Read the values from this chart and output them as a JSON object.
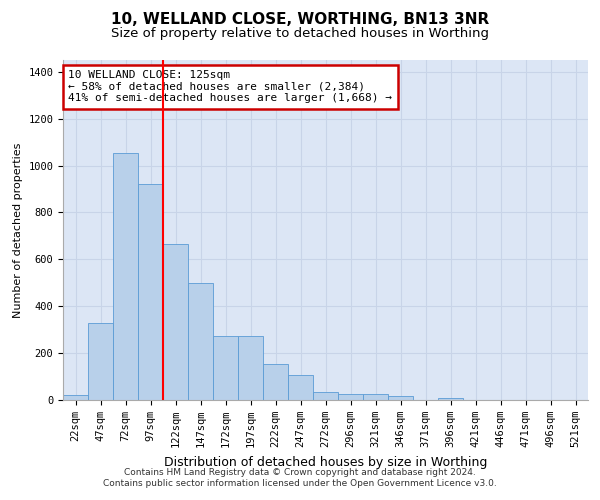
{
  "title": "10, WELLAND CLOSE, WORTHING, BN13 3NR",
  "subtitle": "Size of property relative to detached houses in Worthing",
  "xlabel": "Distribution of detached houses by size in Worthing",
  "ylabel": "Number of detached properties",
  "bin_labels": [
    "22sqm",
    "47sqm",
    "72sqm",
    "97sqm",
    "122sqm",
    "147sqm",
    "172sqm",
    "197sqm",
    "222sqm",
    "247sqm",
    "272sqm",
    "296sqm",
    "321sqm",
    "346sqm",
    "371sqm",
    "396sqm",
    "421sqm",
    "446sqm",
    "471sqm",
    "496sqm",
    "521sqm"
  ],
  "bar_values": [
    20,
    330,
    1055,
    920,
    665,
    500,
    275,
    275,
    155,
    105,
    35,
    25,
    25,
    15,
    0,
    10,
    0,
    0,
    0,
    0,
    0
  ],
  "bar_color": "#b8d0ea",
  "bar_edge_color": "#5b9bd5",
  "grid_color": "#c8d4e8",
  "background_color": "#dce6f5",
  "red_line_bin_index": 4,
  "annotation_text": "10 WELLAND CLOSE: 125sqm\n← 58% of detached houses are smaller (2,384)\n41% of semi-detached houses are larger (1,668) →",
  "annotation_box_color": "#cc0000",
  "ylim": [
    0,
    1450
  ],
  "footer_line1": "Contains HM Land Registry data © Crown copyright and database right 2024.",
  "footer_line2": "Contains public sector information licensed under the Open Government Licence v3.0.",
  "title_fontsize": 11,
  "subtitle_fontsize": 9.5,
  "xlabel_fontsize": 9,
  "ylabel_fontsize": 8,
  "tick_fontsize": 7.5,
  "annotation_fontsize": 8,
  "footer_fontsize": 6.5
}
